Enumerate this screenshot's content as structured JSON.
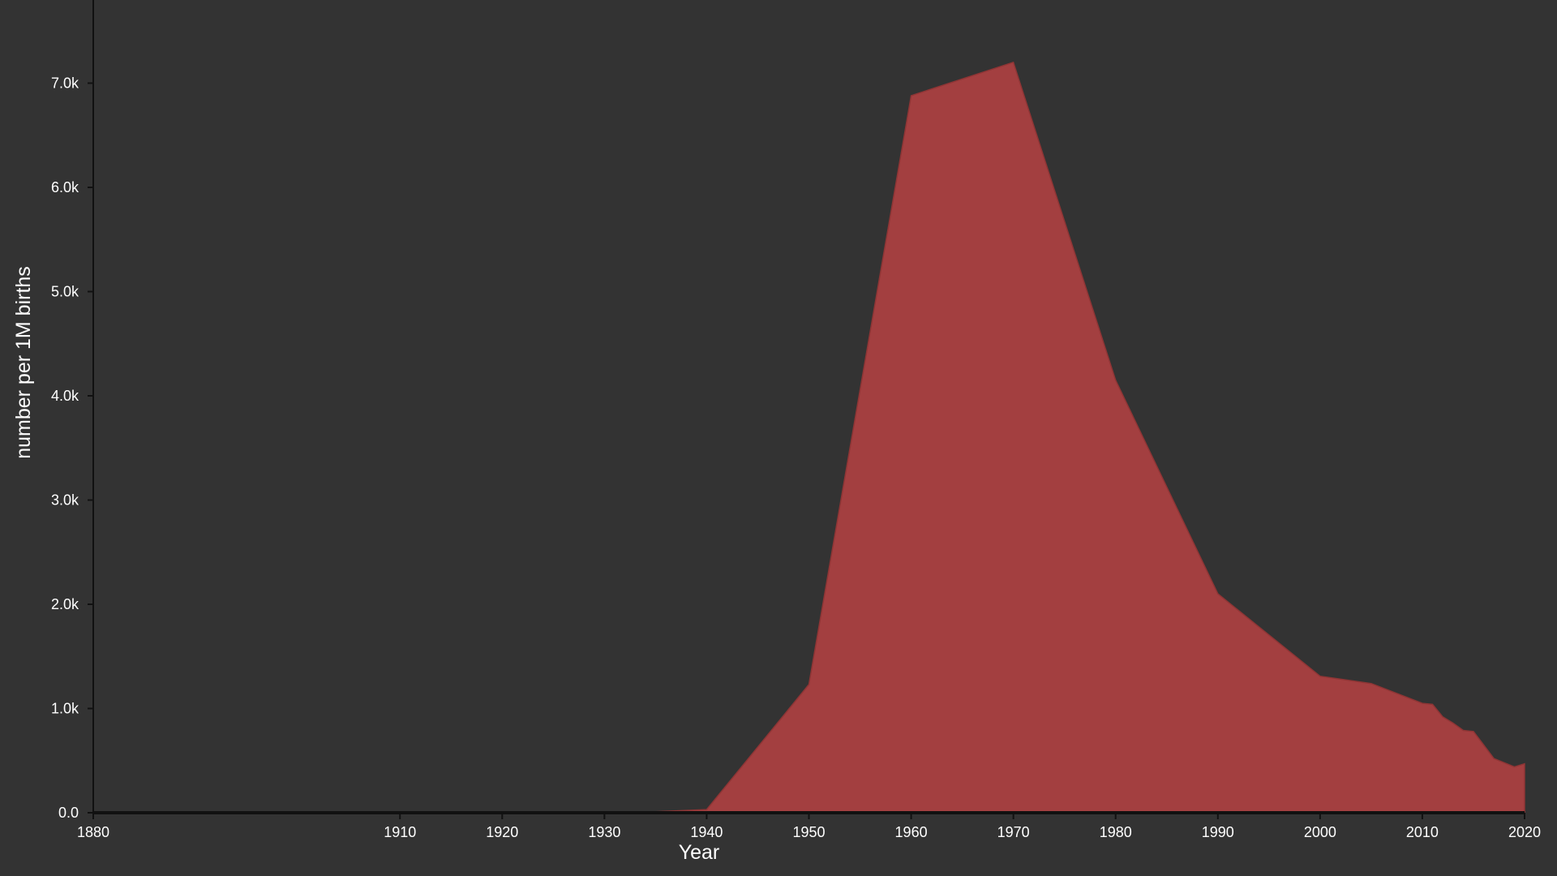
{
  "chart_data": {
    "type": "area",
    "xlabel": "Year",
    "ylabel": "number per 1M births",
    "xlim": [
      1880,
      2020
    ],
    "ylim": [
      0,
      7600
    ],
    "x_ticks": [
      "1880",
      "1910",
      "1920",
      "1930",
      "1940",
      "1950",
      "1960",
      "1970",
      "1980",
      "1990",
      "2000",
      "2010",
      "2020"
    ],
    "y_ticks": [
      "0.0",
      "1.0k",
      "2.0k",
      "3.0k",
      "4.0k",
      "5.0k",
      "6.0k",
      "7.0k"
    ],
    "series": [
      {
        "x": [
          1880,
          1890,
          1900,
          1910,
          1920,
          1930,
          1935,
          1940,
          1950,
          1960,
          1970,
          1980,
          1990,
          2000,
          2005,
          2010,
          2011,
          2012,
          2013,
          2014,
          2015,
          2016,
          2017,
          2018,
          2019,
          2020
        ],
        "values": [
          0,
          0,
          0,
          0,
          0,
          5,
          10,
          30,
          1230,
          6880,
          7200,
          4150,
          2100,
          1310,
          1240,
          1050,
          1040,
          920,
          860,
          790,
          780,
          650,
          520,
          480,
          440,
          470
        ],
        "color": "#a33f40"
      }
    ],
    "grid": false,
    "background": "#333333",
    "axis_color": "#111111",
    "text_color": "#ffffff"
  }
}
